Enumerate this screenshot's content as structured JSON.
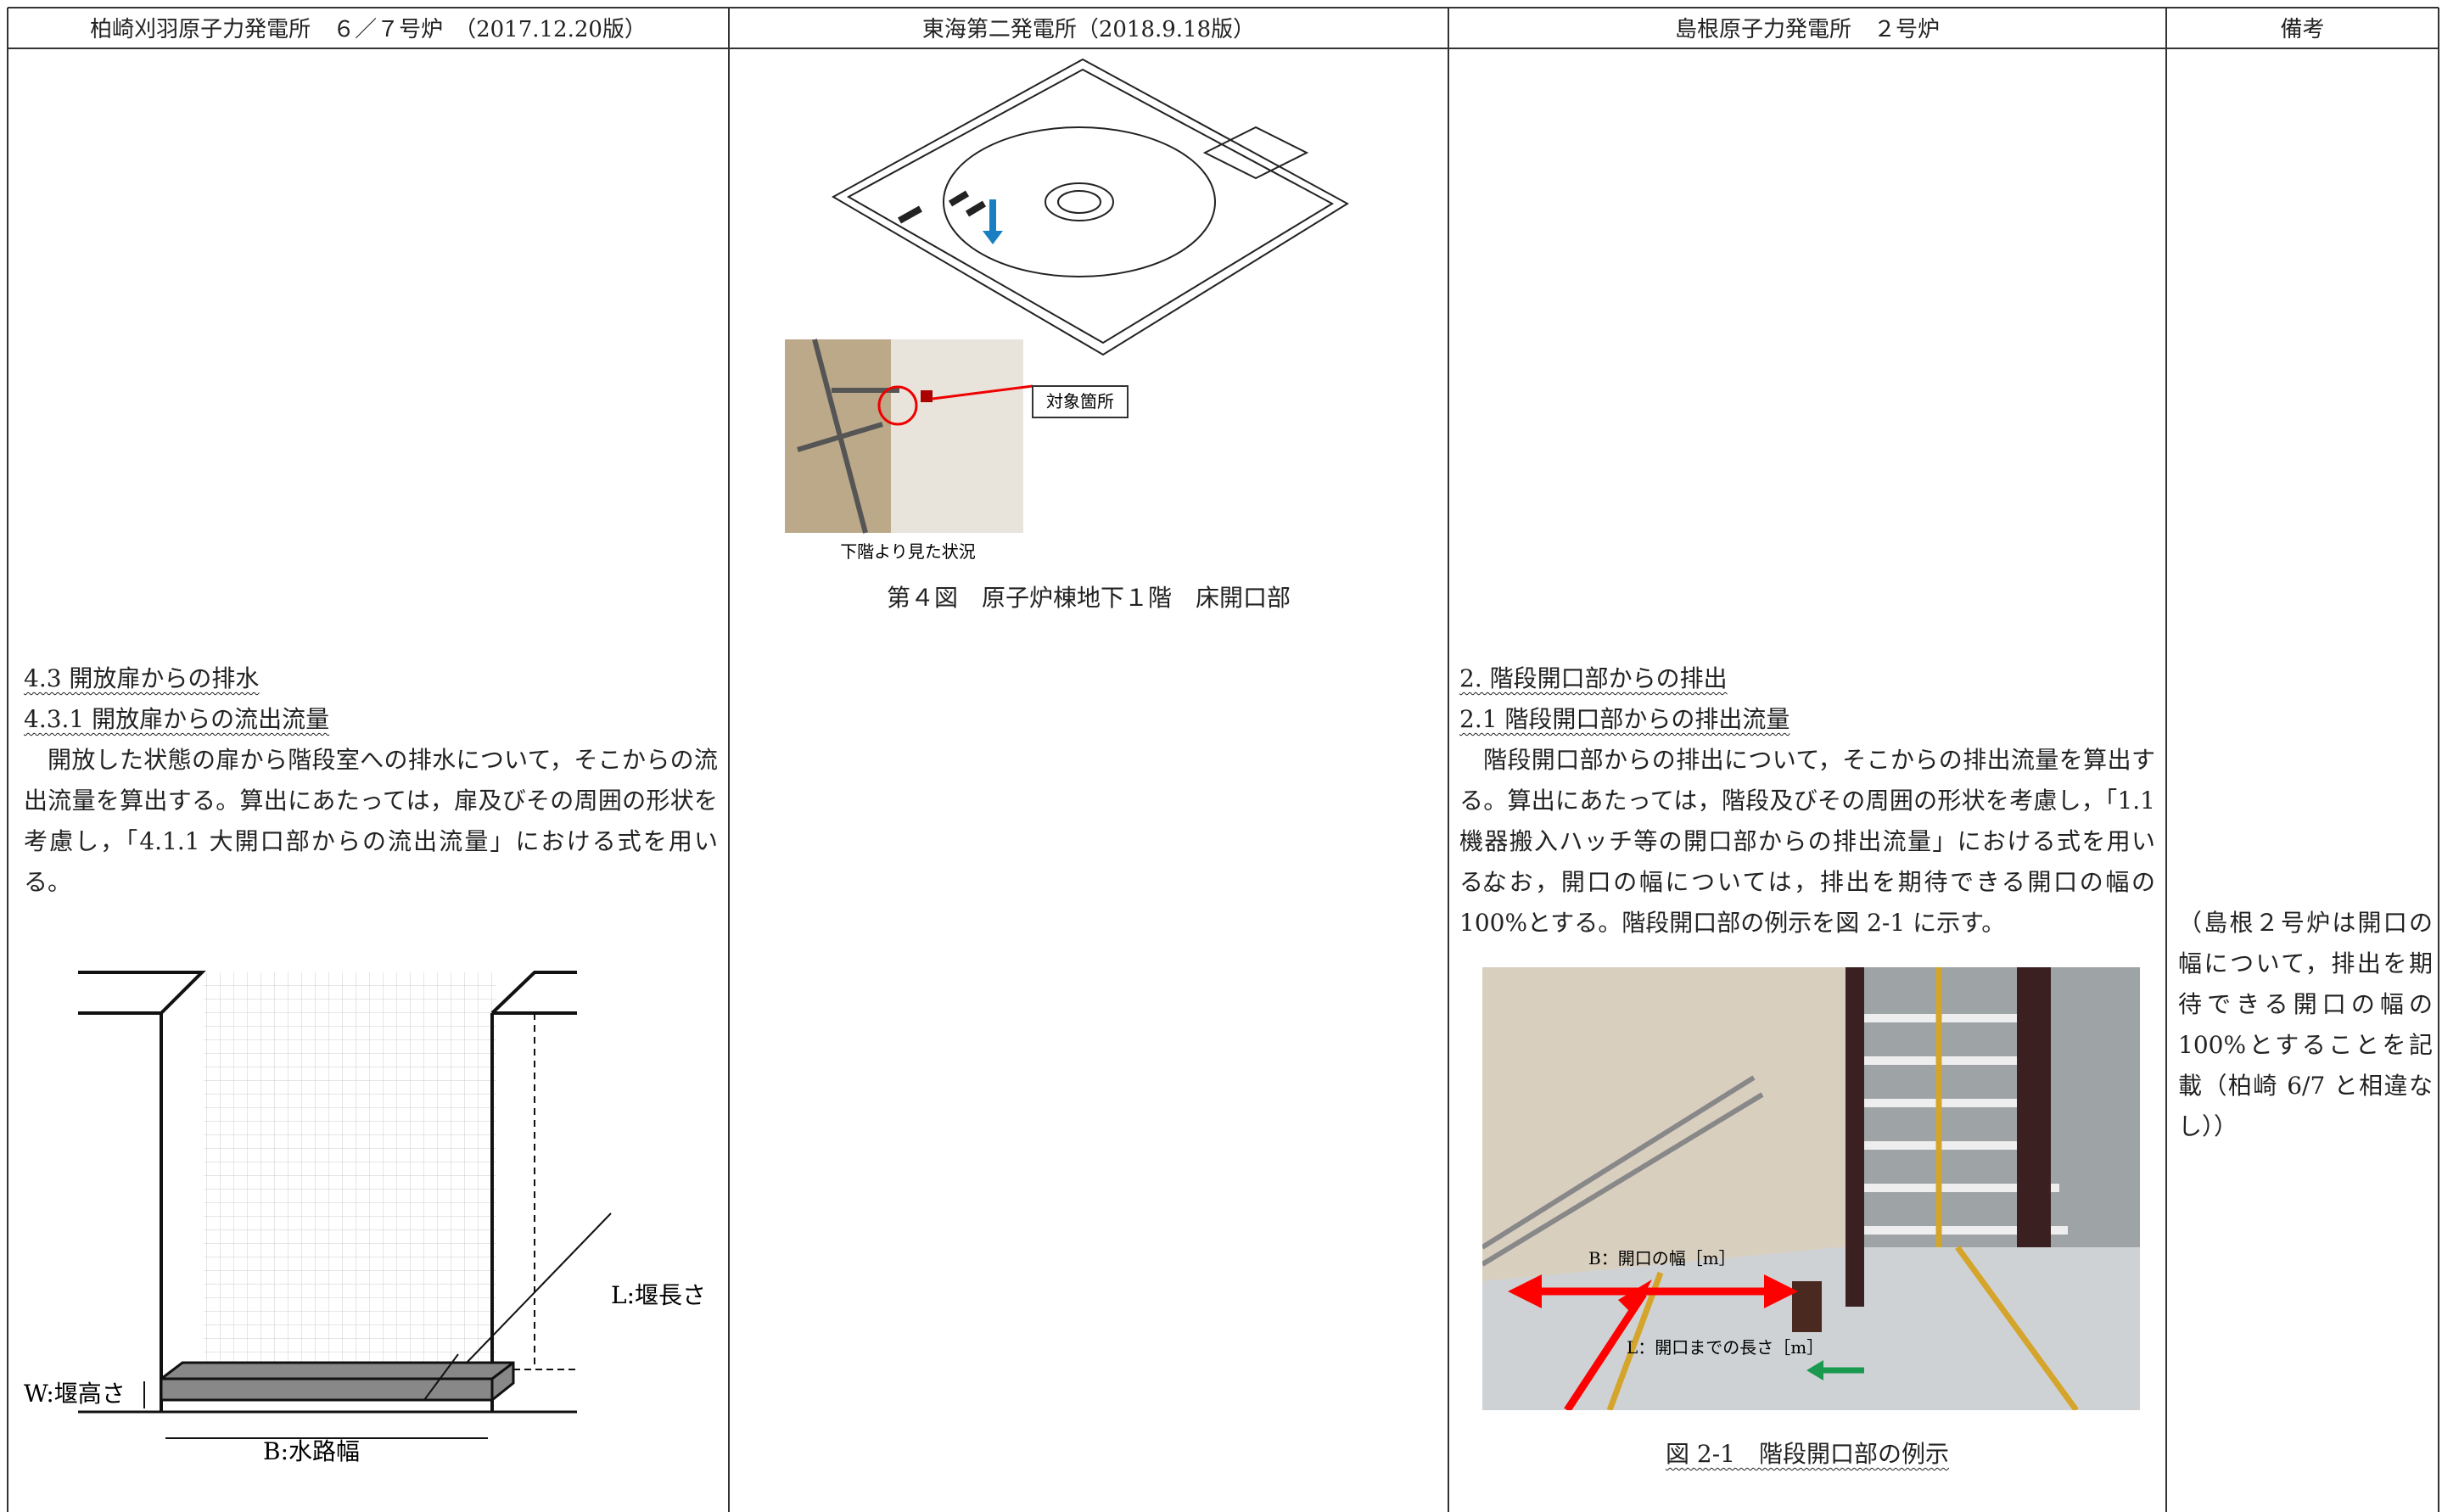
{
  "header": [
    "柏崎刈羽原子力発電所　６／７号炉　（2017.12.20版）",
    "東海第二発電所（2018.9.18版）",
    "島根原子力発電所　２号炉",
    "備考"
  ],
  "col1": {
    "heading1": "4.3 開放扉からの排水",
    "heading2": "4.3.1 開放扉からの流出流量",
    "paragraph": "開放した状態の扉から階段室への排水について，そこからの流出流量を算出する。算出にあたっては，扉及びその周囲の形状を考慮し，「4.1.1 大開口部からの流出流量」における式を用いる。",
    "figure_labels": {
      "weir_length": "L:堰長さ",
      "weir_height": "W:堰高さ",
      "channel_width": "B:水路幅"
    }
  },
  "col2": {
    "photo_callout": "対象箇所",
    "photo_caption": "下階より見た状況",
    "figure_caption": "第４図　原子炉棟地下１階　床開口部"
  },
  "col3": {
    "heading1": "2. 階段開口部からの排出",
    "heading2": "2.1 階段開口部からの排出流量",
    "paragraphs": [
      "階段開口部からの排出について，そこからの排出流量を算出する。算出にあたっては，階段及びその周囲の形状を考慮し，「1.1 機器搬入ハッチ等の開口部からの排出流量」における式を用いる。",
      "なお，開口の幅については，排出を期待できる開口の幅の 100%とする。階段開口部の例示を図 2-1 に示す。"
    ],
    "photo_labels": {
      "width": "B：開口の幅［m］",
      "length": "L：開口までの長さ［m］"
    },
    "figure_caption": "図 2-1　階段開口部の例示"
  },
  "col4": {
    "remark": "（島根２号炉は開口の幅について，排出を期待できる開口の幅の 100%とすることを記載（柏崎 6/7 と相違なし））"
  }
}
